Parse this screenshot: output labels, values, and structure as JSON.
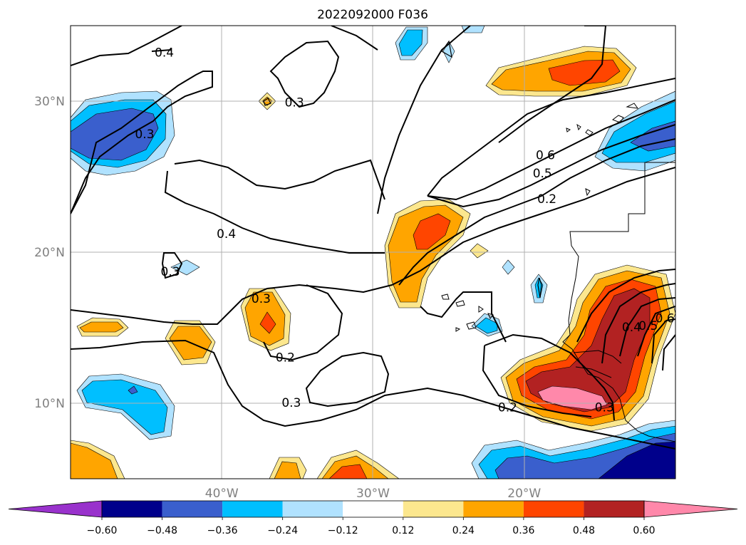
{
  "title": "2022092000 F036",
  "chart_data": {
    "type": "heatmap",
    "title": "2022092000 F036",
    "lat_axis": {
      "range": [
        5,
        35
      ],
      "ticks": [
        {
          "value": 10,
          "label": "10°N"
        },
        {
          "value": 20,
          "label": "20°N"
        },
        {
          "value": 30,
          "label": "30°N"
        }
      ]
    },
    "lon_axis": {
      "range": [
        -50,
        -10
      ],
      "ticks": [
        {
          "value": -40,
          "label": "40°W"
        },
        {
          "value": -30,
          "label": "30°W"
        },
        {
          "value": -20,
          "label": "20°W"
        }
      ]
    },
    "grid": true,
    "colorbar": {
      "orientation": "horizontal",
      "placement": "bottom",
      "extend": "both",
      "levels": [
        -0.6,
        -0.48,
        -0.36,
        -0.24,
        -0.12,
        0.12,
        0.24,
        0.36,
        0.48,
        0.6
      ],
      "tick_labels": [
        "−0.60",
        "−0.48",
        "−0.36",
        "−0.24",
        "−0.12",
        "0.12",
        "0.24",
        "0.36",
        "0.48",
        "0.60"
      ],
      "colors": [
        "#9932cc",
        "#00008b",
        "#3a5fcd",
        "#00bfff",
        "#b0e2ff",
        "#ffffff",
        "#fce78e",
        "#ffa500",
        "#ff4500",
        "#b22222",
        "#ff88aa"
      ]
    },
    "contour_labels": [
      {
        "text": "0.4",
        "lon": -43.8,
        "lat": 33.0
      },
      {
        "text": "0.3",
        "lon": -45.1,
        "lat": 27.6
      },
      {
        "text": "0.3",
        "lon": -35.2,
        "lat": 29.7
      },
      {
        "text": "0.6",
        "lon": -18.6,
        "lat": 26.2
      },
      {
        "text": "0.5",
        "lon": -18.8,
        "lat": 25.0
      },
      {
        "text": "0.2",
        "lon": -18.5,
        "lat": 23.3
      },
      {
        "text": "0.4",
        "lon": -39.7,
        "lat": 21.0
      },
      {
        "text": "0.3",
        "lon": -43.4,
        "lat": 18.5
      },
      {
        "text": "0.3",
        "lon": -37.4,
        "lat": 16.7
      },
      {
        "text": "0.2",
        "lon": -35.8,
        "lat": 12.8
      },
      {
        "text": "0.3",
        "lon": -35.4,
        "lat": 9.8
      },
      {
        "text": "0.2",
        "lon": -21.1,
        "lat": 9.5
      },
      {
        "text": "0.3",
        "lon": -14.7,
        "lat": 9.5
      },
      {
        "text": "0.4",
        "lon": -12.9,
        "lat": 14.8
      },
      {
        "text": "0.5",
        "lon": -11.8,
        "lat": 14.9
      },
      {
        "text": "0.6",
        "lon": -10.7,
        "lat": 15.4
      }
    ]
  },
  "colors": {
    "contour": "#000000",
    "grid": "#b0b0b0",
    "tick": "#808080",
    "frame": "#000000"
  }
}
